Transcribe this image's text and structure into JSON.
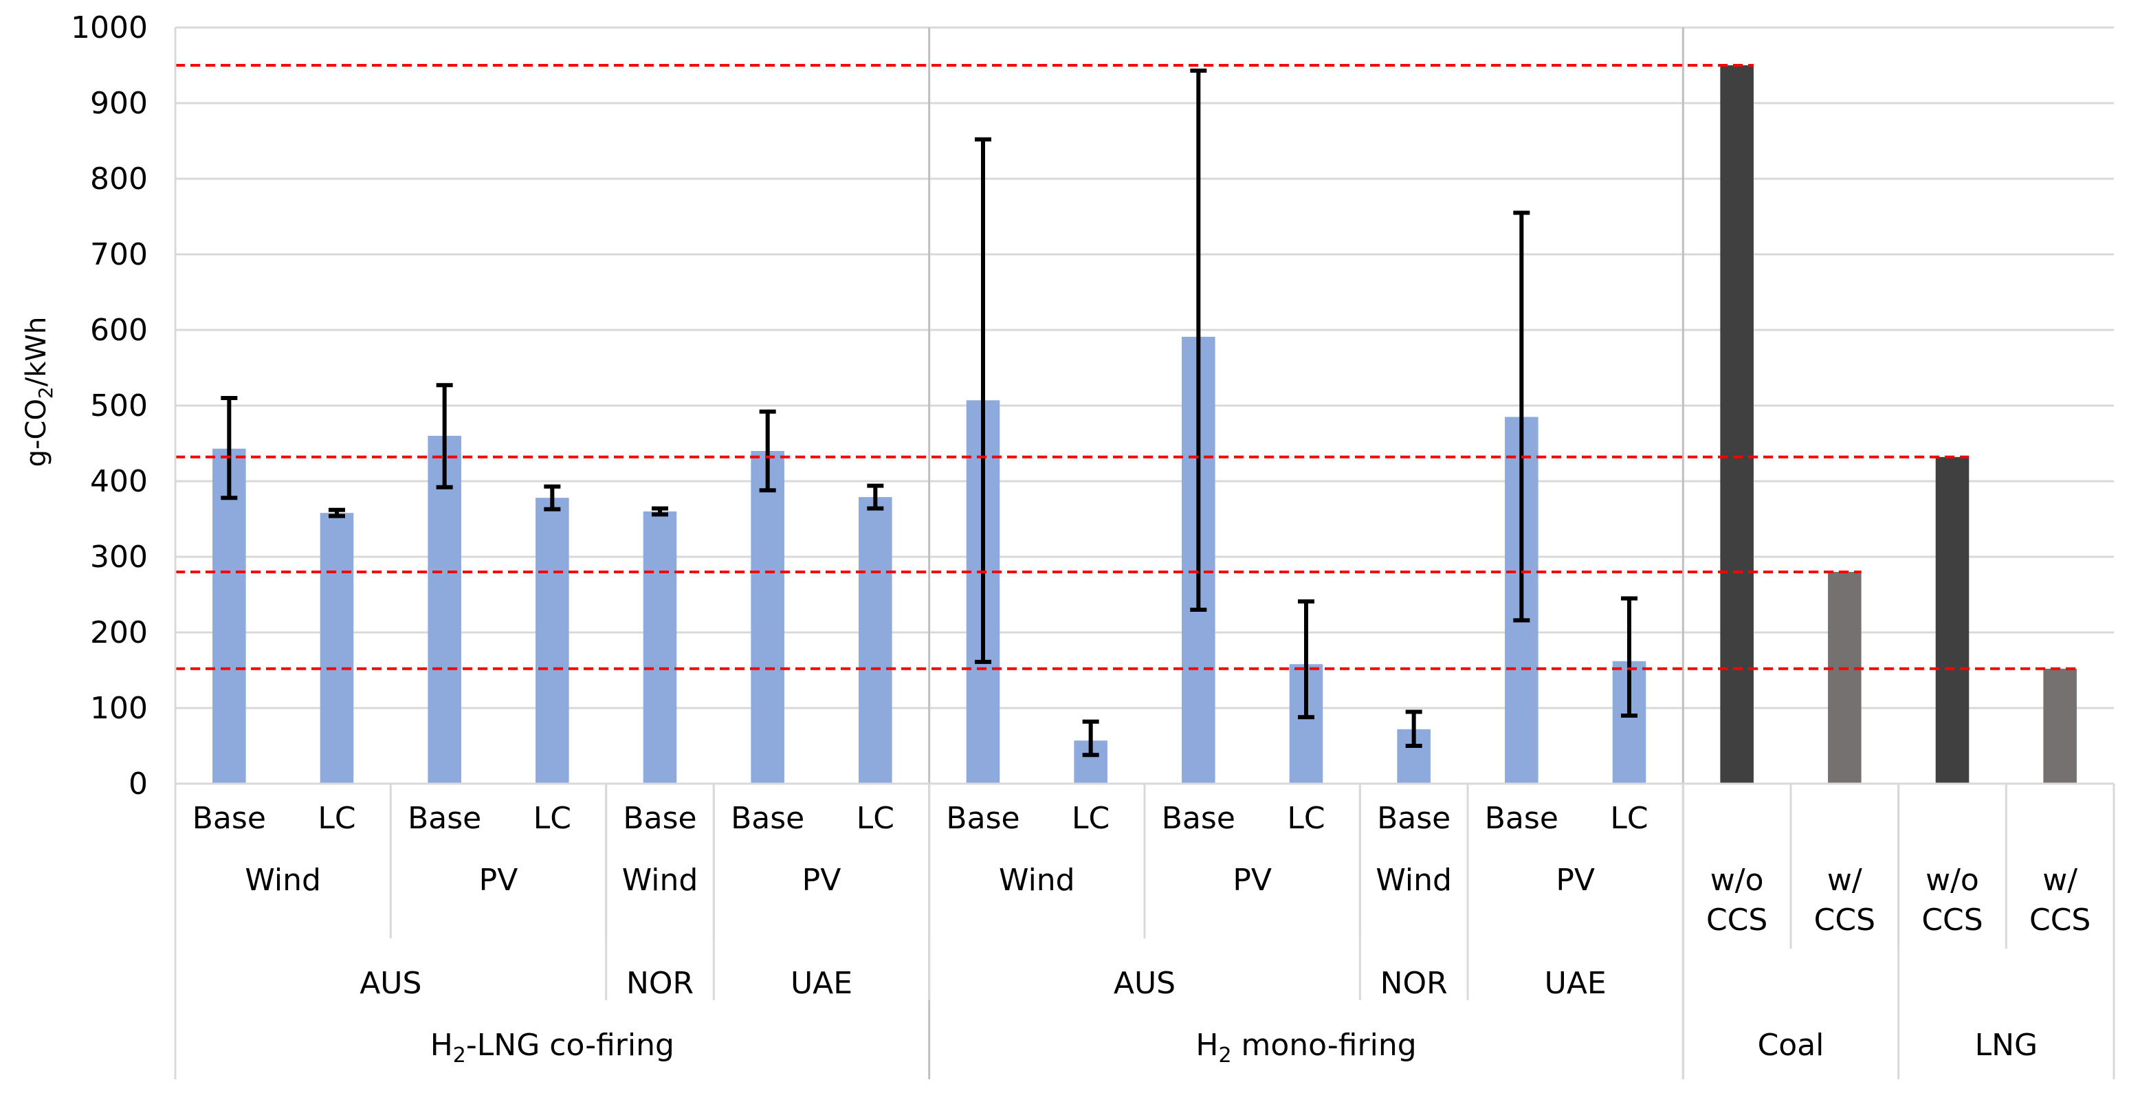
{
  "chart_data": {
    "type": "bar",
    "ylabel": "g-CO2/kWh",
    "ylabel_parts": {
      "pre": "g-CO",
      "sub": "2",
      "post": "/kWh"
    },
    "ylim": [
      0,
      1000
    ],
    "yticks": [
      0,
      100,
      200,
      300,
      400,
      500,
      600,
      700,
      800,
      900,
      1000
    ],
    "grid": true,
    "colors": {
      "h2": "#8EA9DB",
      "dark": "#404040",
      "gray": "#767171",
      "refline": "#FF0000",
      "grid": "#D9D9D9",
      "error": "#000000"
    },
    "bars": [
      {
        "label": "Base",
        "value": 443,
        "err_low": 378,
        "err_high": 510,
        "color": "h2"
      },
      {
        "label": "LC",
        "value": 358,
        "err_low": 354,
        "err_high": 362,
        "color": "h2"
      },
      {
        "label": "Base",
        "value": 460,
        "err_low": 392,
        "err_high": 527,
        "color": "h2"
      },
      {
        "label": "LC",
        "value": 378,
        "err_low": 363,
        "err_high": 393,
        "color": "h2"
      },
      {
        "label": "Base",
        "value": 360,
        "err_low": 356,
        "err_high": 364,
        "color": "h2"
      },
      {
        "label": "Base",
        "value": 440,
        "err_low": 388,
        "err_high": 492,
        "color": "h2"
      },
      {
        "label": "LC",
        "value": 379,
        "err_low": 364,
        "err_high": 394,
        "color": "h2"
      },
      {
        "label": "Base",
        "value": 507,
        "err_low": 161,
        "err_high": 852,
        "color": "h2"
      },
      {
        "label": "LC",
        "value": 57,
        "err_low": 38,
        "err_high": 82,
        "color": "h2"
      },
      {
        "label": "Base",
        "value": 591,
        "err_low": 230,
        "err_high": 943,
        "color": "h2"
      },
      {
        "label": "LC",
        "value": 158,
        "err_low": 88,
        "err_high": 241,
        "color": "h2"
      },
      {
        "label": "Base",
        "value": 72,
        "err_low": 50,
        "err_high": 95,
        "color": "h2"
      },
      {
        "label": "Base",
        "value": 485,
        "err_low": 216,
        "err_high": 755,
        "color": "h2"
      },
      {
        "label": "LC",
        "value": 162,
        "err_low": 90,
        "err_high": 245,
        "color": "h2"
      },
      {
        "label": "w/o\nCCS",
        "value": 950,
        "color": "dark"
      },
      {
        "label": "w/\nCCS",
        "value": 280,
        "color": "gray"
      },
      {
        "label": "w/o\nCCS",
        "value": 432,
        "color": "dark"
      },
      {
        "label": "w/\nCCS",
        "value": 152,
        "color": "gray"
      }
    ],
    "source_groups": [
      {
        "label": "Wind",
        "start": 0,
        "end": 1
      },
      {
        "label": "PV",
        "start": 2,
        "end": 3
      },
      {
        "label": "Wind",
        "start": 4,
        "end": 4
      },
      {
        "label": "PV",
        "start": 5,
        "end": 6
      },
      {
        "label": "Wind",
        "start": 7,
        "end": 8
      },
      {
        "label": "PV",
        "start": 9,
        "end": 10
      },
      {
        "label": "Wind",
        "start": 11,
        "end": 11
      },
      {
        "label": "PV",
        "start": 12,
        "end": 13
      }
    ],
    "country_groups": [
      {
        "label": "AUS",
        "start": 0,
        "end": 3
      },
      {
        "label": "NOR",
        "start": 4,
        "end": 4
      },
      {
        "label": "UAE",
        "start": 5,
        "end": 6
      },
      {
        "label": "AUS",
        "start": 7,
        "end": 10
      },
      {
        "label": "NOR",
        "start": 11,
        "end": 11
      },
      {
        "label": "UAE",
        "start": 12,
        "end": 13
      }
    ],
    "main_groups": [
      {
        "label": "H2-LNG co-firing",
        "parts": {
          "pre": "H",
          "sub": "2",
          "post": "-LNG co-firing"
        },
        "start": 0,
        "end": 6
      },
      {
        "label": "H2 mono-firing",
        "parts": {
          "pre": "H",
          "sub": "2",
          "post": " mono-firing"
        },
        "start": 7,
        "end": 13
      },
      {
        "label": "Coal",
        "parts": {
          "pre": "Coal",
          "sub": "",
          "post": ""
        },
        "start": 14,
        "end": 15
      },
      {
        "label": "LNG",
        "parts": {
          "pre": "LNG",
          "sub": "",
          "post": ""
        },
        "start": 16,
        "end": 17
      }
    ],
    "reference_lines": [
      950,
      432,
      280,
      152
    ],
    "divider_after_bars": [
      6,
      13
    ]
  }
}
